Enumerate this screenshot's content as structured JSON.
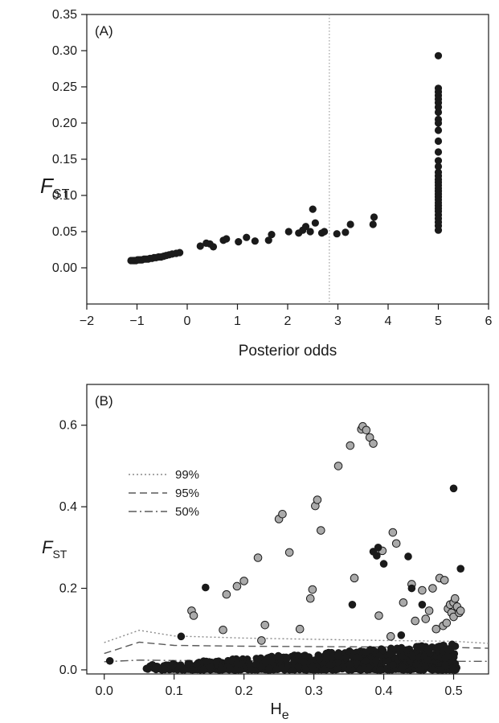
{
  "chart_data": [
    {
      "type": "scatter",
      "panel_label": "(A)",
      "xlabel": "Posterior odds",
      "ylabel_symbol": "F",
      "ylabel_subscript": "ST",
      "xlim": [
        -2,
        6
      ],
      "ylim": [
        -0.05,
        0.35
      ],
      "xticks": [
        -2,
        -1,
        0,
        1,
        2,
        3,
        4,
        5,
        6
      ],
      "xtick_labels": [
        "−2",
        "−1",
        "0",
        "1",
        "2",
        "3",
        "4",
        "5",
        "6"
      ],
      "yticks": [
        0.0,
        0.05,
        0.1,
        0.15,
        0.2,
        0.25,
        0.3,
        0.35
      ],
      "ytick_labels": [
        "0.00",
        "0.05",
        "0.10",
        "0.15",
        "0.20",
        "0.25",
        "0.30",
        "0.35"
      ],
      "threshold_line_x": 2.83,
      "marker_color": "#1a1a1a",
      "points": [
        [
          -1.12,
          0.01
        ],
        [
          -1.08,
          0.01
        ],
        [
          -1.05,
          0.01
        ],
        [
          -1.02,
          0.01
        ],
        [
          -0.99,
          0.011
        ],
        [
          -0.96,
          0.011
        ],
        [
          -0.93,
          0.011
        ],
        [
          -0.9,
          0.011
        ],
        [
          -0.86,
          0.012
        ],
        [
          -0.82,
          0.012
        ],
        [
          -0.78,
          0.012
        ],
        [
          -0.74,
          0.013
        ],
        [
          -0.7,
          0.013
        ],
        [
          -0.66,
          0.014
        ],
        [
          -0.62,
          0.014
        ],
        [
          -0.57,
          0.015
        ],
        [
          -0.52,
          0.015
        ],
        [
          -0.47,
          0.016
        ],
        [
          -0.42,
          0.017
        ],
        [
          -0.36,
          0.018
        ],
        [
          -0.3,
          0.019
        ],
        [
          -0.22,
          0.02
        ],
        [
          -0.15,
          0.021
        ],
        [
          0.26,
          0.03
        ],
        [
          0.38,
          0.034
        ],
        [
          0.45,
          0.033
        ],
        [
          0.52,
          0.029
        ],
        [
          0.72,
          0.038
        ],
        [
          0.78,
          0.04
        ],
        [
          1.02,
          0.036
        ],
        [
          1.18,
          0.042
        ],
        [
          1.35,
          0.037
        ],
        [
          1.62,
          0.038
        ],
        [
          1.68,
          0.046
        ],
        [
          2.02,
          0.05
        ],
        [
          2.22,
          0.048
        ],
        [
          2.3,
          0.052
        ],
        [
          2.36,
          0.057
        ],
        [
          2.45,
          0.05
        ],
        [
          2.5,
          0.081
        ],
        [
          2.55,
          0.062
        ],
        [
          2.68,
          0.048
        ],
        [
          2.73,
          0.05
        ],
        [
          2.98,
          0.047
        ],
        [
          3.15,
          0.049
        ],
        [
          3.25,
          0.06
        ],
        [
          3.7,
          0.06
        ],
        [
          3.72,
          0.07
        ],
        [
          5.0,
          0.052
        ],
        [
          5.0,
          0.058
        ],
        [
          5.0,
          0.063
        ],
        [
          5.0,
          0.068
        ],
        [
          5.0,
          0.073
        ],
        [
          5.0,
          0.078
        ],
        [
          5.0,
          0.082
        ],
        [
          5.0,
          0.086
        ],
        [
          5.0,
          0.09
        ],
        [
          5.0,
          0.094
        ],
        [
          5.0,
          0.098
        ],
        [
          5.0,
          0.102
        ],
        [
          5.0,
          0.106
        ],
        [
          5.0,
          0.11
        ],
        [
          5.0,
          0.114
        ],
        [
          5.0,
          0.118
        ],
        [
          5.0,
          0.122
        ],
        [
          5.0,
          0.127
        ],
        [
          5.0,
          0.132
        ],
        [
          5.0,
          0.14
        ],
        [
          5.0,
          0.148
        ],
        [
          5.0,
          0.16
        ],
        [
          5.0,
          0.175
        ],
        [
          5.0,
          0.19
        ],
        [
          5.0,
          0.2
        ],
        [
          5.0,
          0.205
        ],
        [
          5.0,
          0.215
        ],
        [
          5.0,
          0.222
        ],
        [
          5.0,
          0.228
        ],
        [
          5.0,
          0.233
        ],
        [
          5.0,
          0.238
        ],
        [
          5.0,
          0.243
        ],
        [
          5.0,
          0.248
        ],
        [
          5.0,
          0.293
        ]
      ]
    },
    {
      "type": "scatter",
      "panel_label": "(B)",
      "xlabel_symbol": "H",
      "xlabel_subscript": "e",
      "ylabel_symbol": "F",
      "ylabel_subscript": "ST",
      "xlim": [
        -0.025,
        0.55
      ],
      "ylim": [
        -0.01,
        0.7
      ],
      "xticks": [
        0.0,
        0.1,
        0.2,
        0.3,
        0.4,
        0.5
      ],
      "xtick_labels": [
        "0.0",
        "0.1",
        "0.2",
        "0.3",
        "0.4",
        "0.5"
      ],
      "yticks": [
        0.0,
        0.2,
        0.4,
        0.6
      ],
      "ytick_labels": [
        "0.0",
        "0.2",
        "0.4",
        "0.6"
      ],
      "legend": {
        "placement": "upper-left",
        "entries": [
          {
            "label": "99%",
            "style": "dotted"
          },
          {
            "label": "95%",
            "style": "dashed"
          },
          {
            "label": "50%",
            "style": "dash-dot"
          }
        ]
      },
      "quantile_lines": [
        {
          "name": "99%",
          "style": "dotted",
          "x": [
            0.0,
            0.05,
            0.1,
            0.2,
            0.3,
            0.4,
            0.5,
            0.55
          ],
          "y": [
            0.067,
            0.097,
            0.083,
            0.078,
            0.075,
            0.072,
            0.07,
            0.065
          ]
        },
        {
          "name": "95%",
          "style": "dashed",
          "x": [
            0.0,
            0.05,
            0.1,
            0.2,
            0.3,
            0.4,
            0.5,
            0.55
          ],
          "y": [
            0.04,
            0.068,
            0.06,
            0.058,
            0.057,
            0.056,
            0.055,
            0.053
          ]
        },
        {
          "name": "50%",
          "style": "dash-dot",
          "x": [
            0.0,
            0.05,
            0.1,
            0.2,
            0.3,
            0.4,
            0.5,
            0.55
          ],
          "y": [
            0.02,
            0.024,
            0.023,
            0.022,
            0.022,
            0.022,
            0.021,
            0.021
          ]
        }
      ],
      "outlier_color": "#aaaaaa",
      "neutral_color": "#1a1a1a",
      "outlier_points": [
        [
          0.125,
          0.145
        ],
        [
          0.128,
          0.133
        ],
        [
          0.17,
          0.098
        ],
        [
          0.175,
          0.185
        ],
        [
          0.19,
          0.205
        ],
        [
          0.2,
          0.218
        ],
        [
          0.22,
          0.275
        ],
        [
          0.225,
          0.072
        ],
        [
          0.23,
          0.11
        ],
        [
          0.25,
          0.37
        ],
        [
          0.255,
          0.382
        ],
        [
          0.265,
          0.288
        ],
        [
          0.28,
          0.1
        ],
        [
          0.295,
          0.175
        ],
        [
          0.298,
          0.197
        ],
        [
          0.302,
          0.402
        ],
        [
          0.305,
          0.417
        ],
        [
          0.31,
          0.342
        ],
        [
          0.335,
          0.5
        ],
        [
          0.352,
          0.55
        ],
        [
          0.358,
          0.225
        ],
        [
          0.368,
          0.59
        ],
        [
          0.37,
          0.597
        ],
        [
          0.375,
          0.588
        ],
        [
          0.38,
          0.57
        ],
        [
          0.385,
          0.555
        ],
        [
          0.393,
          0.133
        ],
        [
          0.398,
          0.292
        ],
        [
          0.41,
          0.082
        ],
        [
          0.413,
          0.337
        ],
        [
          0.418,
          0.31
        ],
        [
          0.428,
          0.165
        ],
        [
          0.44,
          0.21
        ],
        [
          0.445,
          0.12
        ],
        [
          0.455,
          0.195
        ],
        [
          0.46,
          0.125
        ],
        [
          0.465,
          0.145
        ],
        [
          0.47,
          0.2
        ],
        [
          0.475,
          0.1
        ],
        [
          0.48,
          0.225
        ],
        [
          0.485,
          0.108
        ],
        [
          0.487,
          0.22
        ],
        [
          0.49,
          0.115
        ],
        [
          0.492,
          0.15
        ],
        [
          0.495,
          0.16
        ],
        [
          0.497,
          0.14
        ],
        [
          0.5,
          0.13
        ],
        [
          0.5,
          0.165
        ],
        [
          0.502,
          0.175
        ],
        [
          0.505,
          0.155
        ],
        [
          0.508,
          0.14
        ],
        [
          0.51,
          0.145
        ]
      ],
      "neutral_points": [
        [
          0.008,
          0.022
        ],
        [
          0.11,
          0.082
        ],
        [
          0.145,
          0.202
        ],
        [
          0.355,
          0.16
        ],
        [
          0.385,
          0.29
        ],
        [
          0.39,
          0.28
        ],
        [
          0.392,
          0.3
        ],
        [
          0.4,
          0.26
        ],
        [
          0.425,
          0.085
        ],
        [
          0.435,
          0.278
        ],
        [
          0.44,
          0.2
        ],
        [
          0.455,
          0.16
        ],
        [
          0.5,
          0.445
        ],
        [
          0.51,
          0.248
        ]
      ]
    }
  ]
}
